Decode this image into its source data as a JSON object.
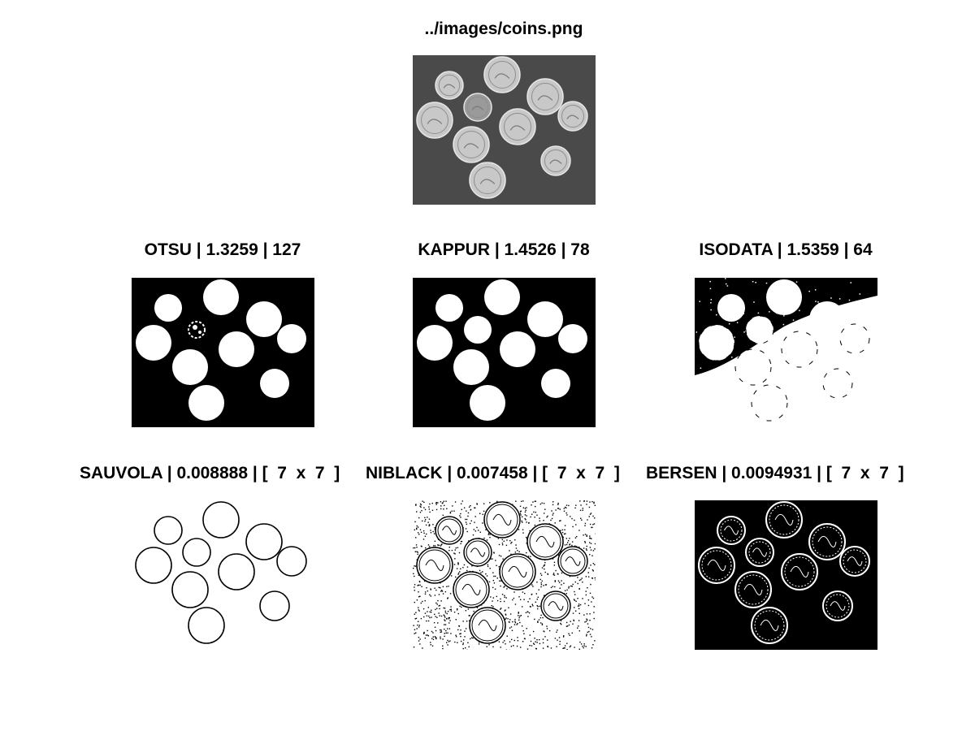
{
  "figure": {
    "original": {
      "title": "../images/coins.png"
    },
    "panels": [
      {
        "title": "OTSU | 1.3259 | 127"
      },
      {
        "title": "KAPPUR | 1.4526 | 78"
      },
      {
        "title": "ISODATA | 1.5359 | 64"
      },
      {
        "title": "SAUVOLA | 0.008888 | [  7  x  7  ]"
      },
      {
        "title": "NIBLACK | 0.007458 | [  7  x  7  ]"
      },
      {
        "title": "BERSEN | 0.0094931 | [  7  x  7  ]"
      }
    ]
  },
  "colors": {
    "photo_background": "#4a4a4a",
    "coin": "#c8c8c8",
    "dime": "#9a9a9a",
    "mask_background": "#000000",
    "mask_foreground": "#ffffff"
  }
}
